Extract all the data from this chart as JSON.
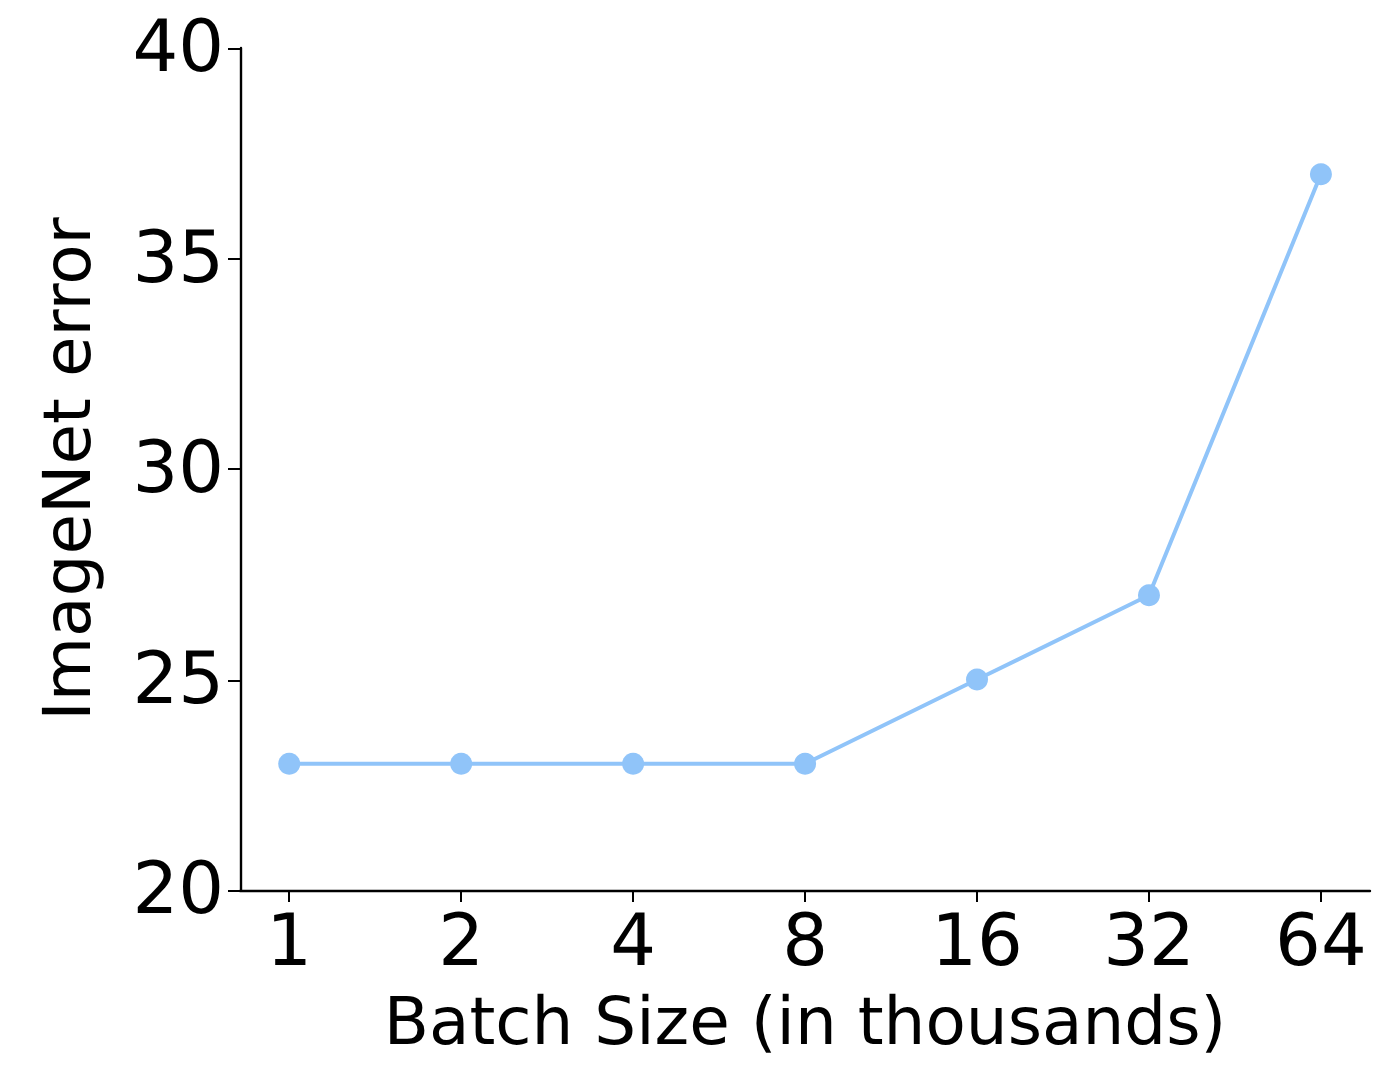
{
  "chart_data": {
    "type": "line",
    "xlabel": "Batch Size (in thousands)",
    "ylabel": "ImageNet error",
    "x": [
      1,
      2,
      4,
      8,
      16,
      32,
      64
    ],
    "series": [
      {
        "color": "#90c4f9",
        "values": [
          23,
          23,
          23,
          23,
          25,
          27,
          37
        ]
      }
    ],
    "log": "x",
    "xlim": [
      0.82,
      78
    ],
    "xticks": [
      1,
      2,
      4,
      8,
      16,
      32,
      64
    ],
    "ylim": [
      20,
      40
    ],
    "yticks": [
      20,
      25,
      30,
      35,
      40
    ],
    "grid": false,
    "marker": "circle",
    "line_style": "solid"
  }
}
